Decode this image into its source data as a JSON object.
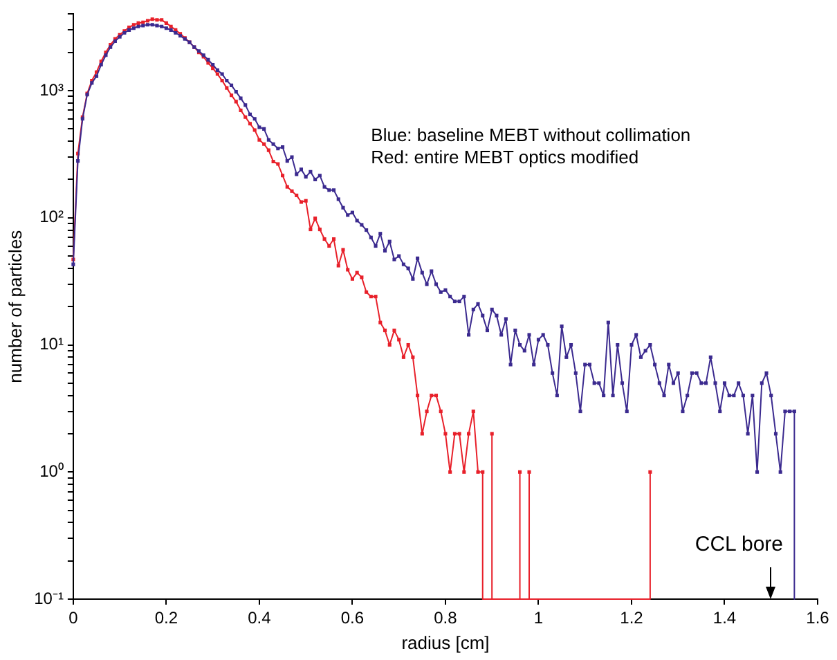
{
  "chart_data": {
    "type": "line",
    "xlabel": "radius [cm]",
    "ylabel": "number of particles",
    "log": "y",
    "grid": false,
    "legend": false,
    "marker": "square",
    "line_style": "solid",
    "xlim": [
      0,
      1.6
    ],
    "xticks": [
      0,
      0.2,
      0.4,
      0.6,
      0.8,
      1,
      1.2,
      1.4,
      1.6
    ],
    "ylim": [
      0.1,
      4000
    ],
    "yticks": [
      {
        "value": 0.1,
        "label": "10⁻¹"
      },
      {
        "value": 0.2,
        "label": null
      },
      {
        "value": 0.3,
        "label": null
      },
      {
        "value": 0.4,
        "label": null
      },
      {
        "value": 0.5,
        "label": null
      },
      {
        "value": 0.6,
        "label": null
      },
      {
        "value": 0.7,
        "label": null
      },
      {
        "value": 0.8,
        "label": null
      },
      {
        "value": 0.9,
        "label": null
      },
      {
        "value": 1,
        "label": "10⁰"
      },
      {
        "value": 2,
        "label": null
      },
      {
        "value": 3,
        "label": null
      },
      {
        "value": 4,
        "label": null
      },
      {
        "value": 5,
        "label": null
      },
      {
        "value": 6,
        "label": null
      },
      {
        "value": 7,
        "label": null
      },
      {
        "value": 8,
        "label": null
      },
      {
        "value": 9,
        "label": null
      },
      {
        "value": 10,
        "label": "10¹"
      },
      {
        "value": 20,
        "label": null
      },
      {
        "value": 30,
        "label": null
      },
      {
        "value": 40,
        "label": null
      },
      {
        "value": 50,
        "label": null
      },
      {
        "value": 60,
        "label": null
      },
      {
        "value": 70,
        "label": null
      },
      {
        "value": 80,
        "label": null
      },
      {
        "value": 90,
        "label": null
      },
      {
        "value": 100,
        "label": "10²"
      },
      {
        "value": 200,
        "label": null
      },
      {
        "value": 300,
        "label": null
      },
      {
        "value": 400,
        "label": null
      },
      {
        "value": 500,
        "label": null
      },
      {
        "value": 600,
        "label": null
      },
      {
        "value": 700,
        "label": null
      },
      {
        "value": 800,
        "label": null
      },
      {
        "value": 900,
        "label": null
      },
      {
        "value": 1000,
        "label": "10³"
      },
      {
        "value": 2000,
        "label": null
      },
      {
        "value": 3000,
        "label": null
      },
      {
        "value": 4000,
        "label": null
      }
    ],
    "annotations": [
      "Blue: baseline MEBT without collimation",
      "Red: entire MEBT optics modified",
      "CCL bore"
    ],
    "series": [
      {
        "color": "#3b2a8f",
        "x": [
          0,
          0.01,
          0.02,
          0.03,
          0.04,
          0.05,
          0.06,
          0.07,
          0.08,
          0.09,
          0.1,
          0.11,
          0.12,
          0.13,
          0.14,
          0.15,
          0.16,
          0.17,
          0.18,
          0.19,
          0.2,
          0.21,
          0.22,
          0.23,
          0.24,
          0.25,
          0.26,
          0.27,
          0.28,
          0.29,
          0.3,
          0.31,
          0.32,
          0.33,
          0.34,
          0.35,
          0.36,
          0.37,
          0.38,
          0.39,
          0.4,
          0.41,
          0.42,
          0.43,
          0.44,
          0.45,
          0.46,
          0.47,
          0.48,
          0.49,
          0.5,
          0.51,
          0.52,
          0.53,
          0.54,
          0.55,
          0.56,
          0.57,
          0.58,
          0.59,
          0.6,
          0.61,
          0.62,
          0.63,
          0.64,
          0.65,
          0.66,
          0.67,
          0.68,
          0.69,
          0.7,
          0.71,
          0.72,
          0.73,
          0.74,
          0.75,
          0.76,
          0.77,
          0.78,
          0.79,
          0.8,
          0.81,
          0.82,
          0.83,
          0.84,
          0.85,
          0.86,
          0.87,
          0.88,
          0.89,
          0.9,
          0.91,
          0.92,
          0.93,
          0.94,
          0.95,
          0.96,
          0.97,
          0.98,
          0.99,
          1,
          1.01,
          1.02,
          1.03,
          1.04,
          1.05,
          1.06,
          1.07,
          1.08,
          1.09,
          1.1,
          1.11,
          1.12,
          1.13,
          1.14,
          1.15,
          1.16,
          1.17,
          1.18,
          1.19,
          1.2,
          1.21,
          1.22,
          1.23,
          1.24,
          1.25,
          1.26,
          1.27,
          1.28,
          1.29,
          1.3,
          1.31,
          1.32,
          1.33,
          1.34,
          1.35,
          1.36,
          1.37,
          1.38,
          1.39,
          1.4,
          1.41,
          1.42,
          1.43,
          1.44,
          1.45,
          1.46,
          1.47,
          1.48,
          1.49,
          1.5,
          1.51,
          1.52,
          1.53,
          1.54,
          1.55,
          1.55
        ],
        "values": [
          43,
          280,
          600,
          930,
          1150,
          1300,
          1600,
          1900,
          2200,
          2450,
          2650,
          2850,
          3000,
          3100,
          3200,
          3250,
          3300,
          3300,
          3250,
          3200,
          3100,
          3000,
          2850,
          2700,
          2550,
          2400,
          2200,
          2050,
          1900,
          1750,
          1600,
          1450,
          1350,
          1200,
          1100,
          980,
          870,
          770,
          650,
          600,
          515,
          500,
          410,
          380,
          350,
          360,
          280,
          300,
          220,
          240,
          210,
          230,
          200,
          215,
          175,
          165,
          165,
          140,
          120,
          105,
          110,
          95,
          88,
          80,
          70,
          60,
          75,
          55,
          65,
          47,
          50,
          43,
          40,
          33,
          48,
          37,
          30,
          38,
          30,
          26,
          27,
          24,
          22,
          22,
          24,
          12,
          19,
          21,
          17,
          13,
          19,
          17,
          12,
          16,
          7,
          13,
          10,
          9,
          12,
          7,
          11,
          12,
          10,
          6,
          4,
          14,
          8,
          10,
          6,
          3,
          7,
          7,
          5,
          5,
          4,
          15,
          4,
          10,
          5,
          3,
          10,
          12,
          8,
          9,
          10,
          7,
          5,
          4,
          7,
          5,
          6,
          3,
          4,
          6,
          6,
          5,
          5,
          8,
          5,
          3,
          5,
          4,
          4,
          5,
          4,
          2,
          4,
          1,
          5,
          6,
          4,
          2,
          1,
          3,
          3,
          3,
          0.1
        ]
      },
      {
        "color": "#e8202a",
        "x": [
          0,
          0.01,
          0.02,
          0.03,
          0.04,
          0.05,
          0.06,
          0.07,
          0.08,
          0.09,
          0.1,
          0.11,
          0.12,
          0.13,
          0.14,
          0.15,
          0.16,
          0.17,
          0.18,
          0.19,
          0.2,
          0.21,
          0.22,
          0.23,
          0.24,
          0.25,
          0.26,
          0.27,
          0.28,
          0.29,
          0.3,
          0.31,
          0.32,
          0.33,
          0.34,
          0.35,
          0.36,
          0.37,
          0.38,
          0.39,
          0.4,
          0.41,
          0.42,
          0.43,
          0.44,
          0.45,
          0.46,
          0.47,
          0.48,
          0.49,
          0.5,
          0.51,
          0.52,
          0.53,
          0.54,
          0.55,
          0.56,
          0.57,
          0.58,
          0.59,
          0.6,
          0.61,
          0.62,
          0.63,
          0.64,
          0.65,
          0.66,
          0.67,
          0.68,
          0.69,
          0.7,
          0.71,
          0.72,
          0.73,
          0.74,
          0.75,
          0.76,
          0.77,
          0.78,
          0.79,
          0.8,
          0.81,
          0.82,
          0.83,
          0.84,
          0.85,
          0.86,
          0.87,
          0.88,
          0.88,
          0.9,
          0.9,
          0.9,
          0.96,
          0.96,
          0.96,
          0.98,
          0.98,
          0.98,
          1.24,
          1.24,
          1.24
        ],
        "values": [
          47,
          320,
          620,
          950,
          1200,
          1400,
          1700,
          2000,
          2300,
          2550,
          2750,
          2950,
          3150,
          3300,
          3400,
          3450,
          3550,
          3650,
          3600,
          3600,
          3400,
          3200,
          3000,
          2800,
          2600,
          2400,
          2200,
          2000,
          1850,
          1650,
          1500,
          1350,
          1200,
          1050,
          920,
          820,
          700,
          620,
          550,
          490,
          410,
          380,
          340,
          277,
          265,
          215,
          175,
          162,
          150,
          133,
          136,
          81,
          99,
          81,
          68,
          60,
          68,
          42,
          56,
          39,
          33,
          37,
          34,
          26,
          24,
          24,
          15,
          13,
          10,
          13,
          11,
          8,
          10,
          8,
          4,
          2,
          3,
          4,
          4,
          3,
          2,
          1,
          2,
          2,
          1,
          2,
          3,
          1,
          1,
          0.1,
          0.1,
          2,
          0.1,
          0.1,
          1,
          0.1,
          0.1,
          1,
          0.1,
          0.1,
          1,
          0.1
        ]
      }
    ]
  }
}
